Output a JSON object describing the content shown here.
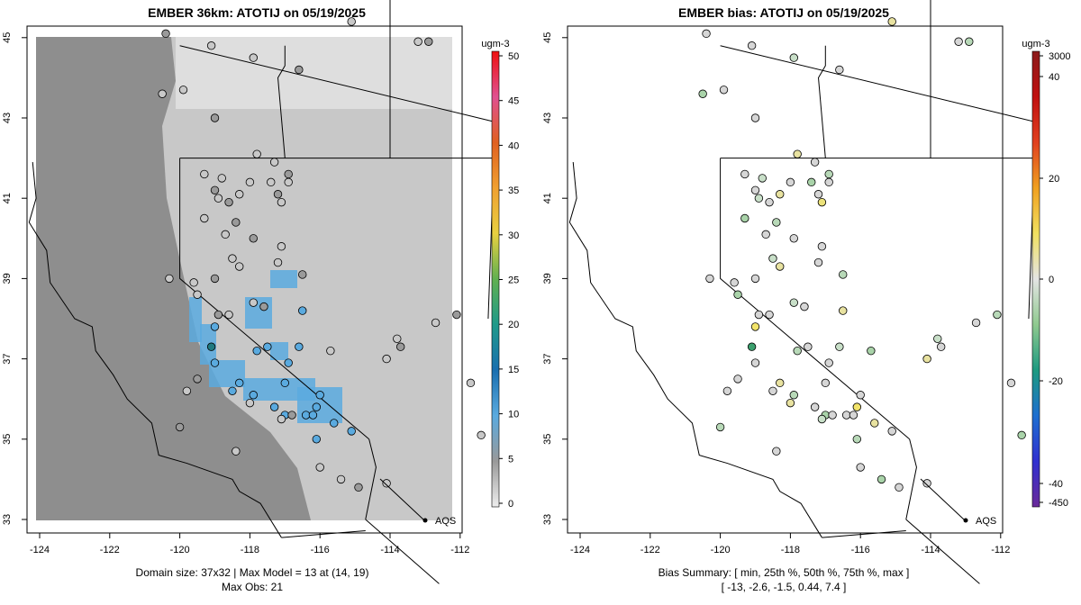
{
  "left": {
    "title": "EMBER 36km: ATOTIJ on 05/19/2025",
    "caption_line1": "Domain size: 37x32 | Max Model = 13 at (14, 19)",
    "caption_line2": "Max Obs: 21",
    "colorbar_unit": "ugm-3",
    "colorbar_ticks": [
      "0",
      "5",
      "10",
      "15",
      "20",
      "25",
      "30",
      "35",
      "40",
      "45",
      "50"
    ]
  },
  "right": {
    "title": "EMBER bias: ATOTIJ on 05/19/2025",
    "caption_line1": "Bias Summary: [ min, 25th %, 50th %, 75th %, max ]",
    "caption_line2": "[ -13,   -2.6,   -1.5,   0.44,   7.4 ]",
    "colorbar_unit": "ugm-3",
    "colorbar_ticks": [
      "-450",
      "-40",
      "-20",
      "0",
      "20",
      "40",
      "3000"
    ]
  },
  "map_axes": {
    "lon_ticks": [
      "-124",
      "-122",
      "-120",
      "-118",
      "-116",
      "-114",
      "-112"
    ],
    "lat_ticks": [
      "33",
      "35",
      "37",
      "39",
      "41",
      "43",
      "45"
    ]
  },
  "legend_label": "AQS",
  "colors": {
    "ocean_model": "#8e8e8e",
    "land_model": "#c8c8c8",
    "high_model": "#5aaadf",
    "obs_outline": "#000000",
    "bias_neutral": "#d6d6d6"
  }
}
